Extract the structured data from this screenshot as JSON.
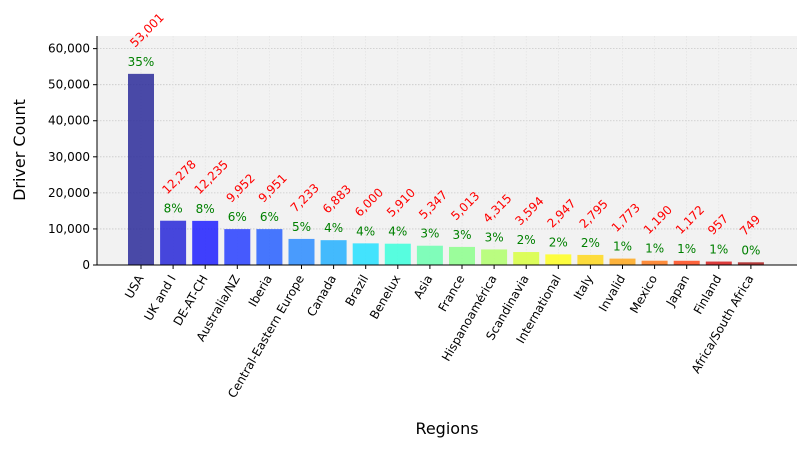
{
  "chart_data": {
    "type": "bar",
    "title": "",
    "xlabel": "Regions",
    "ylabel": "Driver Count",
    "ylim": [
      0,
      63500
    ],
    "yticks": [
      0,
      10000,
      20000,
      30000,
      40000,
      50000,
      60000
    ],
    "ytick_labels": [
      "0",
      "10,000",
      "20,000",
      "30,000",
      "40,000",
      "50,000",
      "60,000"
    ],
    "grid": true,
    "categories": [
      "USA",
      "UK and I",
      "DE-AT-CH",
      "Australia/NZ",
      "Iberia",
      "Central-Eastern Europe",
      "Canada",
      "Brazil",
      "Benelux",
      "Asia",
      "France",
      "Hispanoamérica",
      "Scandinavia",
      "International",
      "Italy",
      "Invalid",
      "Mexico",
      "Japan",
      "Finland",
      "Africa/South Africa"
    ],
    "values": [
      53001,
      12278,
      12235,
      9952,
      9951,
      7233,
      6883,
      6000,
      5910,
      5347,
      5013,
      4315,
      3594,
      2947,
      2795,
      1773,
      1190,
      1172,
      957,
      749
    ],
    "value_labels": [
      "53,001",
      "12,278",
      "12,235",
      "9,952",
      "9,951",
      "7,233",
      "6,883",
      "6,000",
      "5,910",
      "5,347",
      "5,013",
      "4,315",
      "3,594",
      "2,947",
      "2,795",
      "1,773",
      "1,190",
      "1,172",
      "957",
      "749"
    ],
    "percent_labels": [
      "35%",
      "8%",
      "8%",
      "6%",
      "6%",
      "5%",
      "4%",
      "4%",
      "4%",
      "3%",
      "3%",
      "3%",
      "2%",
      "2%",
      "2%",
      "1%",
      "1%",
      "1%",
      "1%",
      "0%"
    ],
    "colors": [
      "#2c2c9a",
      "#2828d8",
      "#2020ff",
      "#2840ff",
      "#2860ff",
      "#2c8cff",
      "#24b0ff",
      "#24e0ff",
      "#3cffdc",
      "#6cffb0",
      "#8cff8c",
      "#b0ff6c",
      "#d8ff40",
      "#ffff20",
      "#ffd81c",
      "#ffa81c",
      "#ff7a1c",
      "#ff4a1c",
      "#d81c1c",
      "#a81c1c"
    ],
    "value_label_color": "#ff0000",
    "percent_label_color": "#008000",
    "plot_background": "#f2f2f2"
  }
}
